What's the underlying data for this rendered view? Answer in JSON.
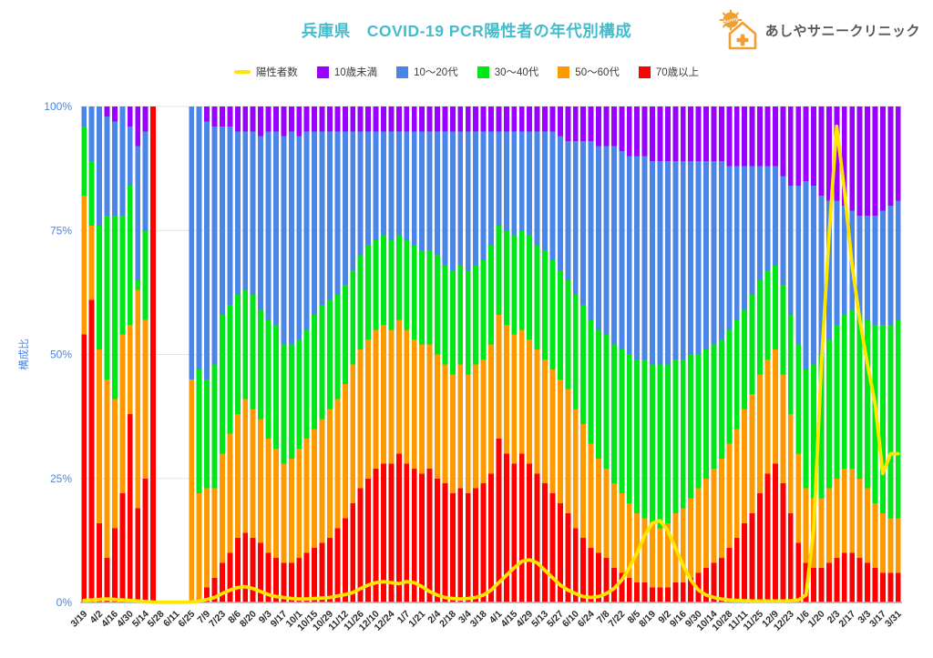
{
  "header": {
    "title": "兵庫県　COVID-19 PCR陽性者の年代別構成",
    "title_color": "#45BCCD",
    "logo": {
      "text": "あしやサニークリニック",
      "sun_label": "Sunny",
      "color": "#F0A030",
      "text_color": "#595959"
    }
  },
  "legend": {
    "items": [
      {
        "label": "陽性者数",
        "color": "#FFE600",
        "type": "line"
      },
      {
        "label": "10歳未満",
        "color": "#9900FF",
        "type": "box"
      },
      {
        "label": "10〜20代",
        "color": "#4A86E8",
        "type": "box"
      },
      {
        "label": "30〜40代",
        "color": "#00E619",
        "type": "box"
      },
      {
        "label": "50〜60代",
        "color": "#FF9900",
        "type": "box"
      },
      {
        "label": "70歳以上",
        "color": "#FF0000",
        "type": "box"
      }
    ]
  },
  "chart_data": {
    "type": "bar",
    "subtype": "100%-stacked-weekly-bars-with-overlay-line",
    "title": "兵庫県　COVID-19 PCR陽性者の年代別構成",
    "xlabel": "",
    "ylabel": "構成比",
    "ylim": [
      0,
      100
    ],
    "y_ticks": [
      "0%",
      "25%",
      "50%",
      "75%",
      "100%"
    ],
    "grid": true,
    "legend_position": "top",
    "axis_label_color": "#4A86E8",
    "x_label_color": "#2b2b2b",
    "gridline_color": "#e6e6e6",
    "axisline_color": "#b0b0b0",
    "x_tick_every": 2,
    "stack_from": "bottom",
    "categories": [
      "3/19",
      "3/26",
      "4/2",
      "4/9",
      "4/16",
      "4/23",
      "4/30",
      "5/7",
      "5/14",
      "5/21",
      "5/28",
      "6/4",
      "6/11",
      "6/18",
      "6/25",
      "7/2",
      "7/9",
      "7/16",
      "7/23",
      "7/30",
      "8/6",
      "8/13",
      "8/20",
      "8/27",
      "9/3",
      "9/10",
      "9/17",
      "9/24",
      "10/1",
      "10/8",
      "10/15",
      "10/22",
      "10/29",
      "11/5",
      "11/12",
      "11/19",
      "11/26",
      "12/3",
      "12/10",
      "12/17",
      "12/24",
      "12/31",
      "1/7",
      "1/14",
      "1/21",
      "1/28",
      "2/4",
      "2/11",
      "2/18",
      "2/25",
      "3/4",
      "3/11",
      "3/18",
      "3/25",
      "4/1",
      "4/8",
      "4/15",
      "4/22",
      "4/29",
      "5/6",
      "5/13",
      "5/20",
      "5/27",
      "6/3",
      "6/10",
      "6/17",
      "6/24",
      "7/1",
      "7/8",
      "7/15",
      "7/22",
      "7/29",
      "8/5",
      "8/12",
      "8/19",
      "8/26",
      "9/2",
      "9/9",
      "9/16",
      "9/23",
      "9/30",
      "10/7",
      "10/14",
      "10/21",
      "10/28",
      "11/4",
      "11/11",
      "11/18",
      "11/25",
      "12/2",
      "12/9",
      "12/16",
      "12/23",
      "12/30",
      "1/6",
      "1/13",
      "1/20",
      "1/27",
      "2/3",
      "2/10",
      "2/17",
      "2/24",
      "3/3",
      "3/10",
      "3/17",
      "3/24",
      "3/31"
    ],
    "series": [
      {
        "name": "70歳以上",
        "color": "#FF0000",
        "values": [
          54,
          61,
          16,
          9,
          15,
          22,
          38,
          19,
          25,
          100,
          0,
          0,
          0,
          0,
          0,
          0,
          3,
          5,
          8,
          10,
          13,
          14,
          13,
          12,
          10,
          9,
          8,
          8,
          9,
          10,
          11,
          12,
          13,
          15,
          17,
          20,
          23,
          25,
          27,
          28,
          28,
          30,
          28,
          27,
          26,
          27,
          25,
          24,
          22,
          23,
          22,
          23,
          24,
          26,
          33,
          30,
          28,
          30,
          28,
          26,
          24,
          22,
          20,
          18,
          15,
          13,
          11,
          10,
          9,
          7,
          6,
          5,
          4,
          4,
          3,
          3,
          3,
          4,
          4,
          5,
          6,
          7,
          8,
          9,
          11,
          13,
          16,
          18,
          22,
          26,
          28,
          24,
          18,
          12,
          8,
          7,
          7,
          8,
          9,
          10,
          10,
          9,
          8,
          7,
          6,
          6,
          6
        ]
      },
      {
        "name": "50〜60代",
        "color": "#FF9900",
        "values": [
          28,
          15,
          35,
          36,
          26,
          32,
          18,
          44,
          32,
          0,
          0,
          0,
          0,
          0,
          45,
          22,
          20,
          18,
          22,
          24,
          25,
          27,
          26,
          25,
          23,
          22,
          20,
          21,
          22,
          23,
          24,
          25,
          26,
          26,
          27,
          28,
          28,
          28,
          28,
          28,
          27,
          27,
          27,
          26,
          26,
          25,
          25,
          24,
          24,
          25,
          24,
          25,
          25,
          26,
          25,
          26,
          26,
          25,
          25,
          25,
          25,
          25,
          25,
          25,
          24,
          23,
          21,
          19,
          18,
          17,
          16,
          15,
          14,
          13,
          13,
          12,
          13,
          14,
          15,
          16,
          17,
          18,
          19,
          20,
          21,
          22,
          23,
          24,
          24,
          23,
          23,
          22,
          20,
          18,
          15,
          14,
          14,
          15,
          16,
          17,
          17,
          16,
          15,
          13,
          12,
          11,
          11
        ]
      },
      {
        "name": "30〜40代",
        "color": "#00E619",
        "values": [
          14,
          13,
          25,
          33,
          37,
          24,
          28,
          2,
          18,
          0,
          0,
          0,
          0,
          0,
          0,
          25,
          22,
          25,
          28,
          26,
          24,
          22,
          23,
          22,
          24,
          25,
          24,
          23,
          22,
          22,
          23,
          23,
          22,
          21,
          20,
          19,
          19,
          19,
          18,
          18,
          18,
          17,
          18,
          19,
          19,
          19,
          20,
          20,
          21,
          20,
          21,
          20,
          20,
          20,
          18,
          19,
          20,
          20,
          21,
          21,
          22,
          22,
          22,
          22,
          23,
          24,
          25,
          26,
          27,
          28,
          29,
          30,
          31,
          32,
          32,
          33,
          32,
          31,
          30,
          29,
          27,
          26,
          25,
          24,
          23,
          22,
          20,
          20,
          19,
          18,
          17,
          18,
          20,
          22,
          24,
          27,
          29,
          30,
          31,
          31,
          32,
          33,
          34,
          36,
          38,
          39,
          40
        ]
      },
      {
        "name": "10〜20代",
        "color": "#4A86E8",
        "values": [
          4,
          11,
          24,
          20,
          19,
          22,
          12,
          27,
          20,
          0,
          0,
          0,
          0,
          0,
          55,
          53,
          52,
          48,
          38,
          36,
          33,
          32,
          33,
          35,
          38,
          39,
          42,
          43,
          41,
          40,
          37,
          35,
          34,
          33,
          31,
          28,
          25,
          23,
          22,
          21,
          22,
          21,
          22,
          23,
          24,
          24,
          25,
          27,
          28,
          27,
          28,
          27,
          26,
          23,
          19,
          20,
          21,
          20,
          21,
          23,
          24,
          26,
          27,
          28,
          31,
          33,
          36,
          37,
          38,
          40,
          40,
          40,
          41,
          41,
          41,
          41,
          41,
          40,
          40,
          39,
          39,
          38,
          37,
          36,
          33,
          31,
          29,
          26,
          23,
          21,
          20,
          22,
          26,
          32,
          38,
          36,
          32,
          28,
          25,
          22,
          20,
          20,
          21,
          22,
          23,
          24,
          24
        ]
      },
      {
        "name": "10歳未満",
        "color": "#9900FF",
        "values": [
          0,
          0,
          0,
          2,
          3,
          0,
          4,
          8,
          5,
          0,
          0,
          0,
          0,
          0,
          0,
          0,
          3,
          4,
          4,
          4,
          5,
          5,
          5,
          6,
          5,
          5,
          6,
          5,
          6,
          5,
          5,
          5,
          5,
          5,
          5,
          5,
          5,
          5,
          5,
          5,
          5,
          5,
          5,
          5,
          5,
          5,
          5,
          5,
          5,
          5,
          5,
          5,
          5,
          5,
          5,
          5,
          5,
          5,
          5,
          5,
          5,
          5,
          6,
          7,
          7,
          7,
          7,
          8,
          8,
          8,
          9,
          10,
          10,
          10,
          11,
          11,
          11,
          11,
          11,
          11,
          11,
          11,
          11,
          11,
          12,
          12,
          12,
          12,
          12,
          12,
          12,
          14,
          16,
          16,
          15,
          16,
          18,
          19,
          19,
          20,
          21,
          22,
          22,
          22,
          21,
          20,
          19
        ]
      }
    ],
    "line_series": {
      "name": "陽性者数",
      "color": "#FFE600",
      "axis": "hidden (scaled to plot height, % of axis)",
      "values": [
        0.4,
        0.5,
        0.6,
        0.7,
        0.6,
        0.5,
        0.4,
        0.3,
        0.2,
        0.1,
        0.05,
        0.05,
        0.05,
        0.05,
        0.1,
        0.3,
        0.6,
        1,
        1.8,
        2.5,
        3,
        3.2,
        2.8,
        2.2,
        1.6,
        1.2,
        1,
        0.8,
        0.7,
        0.7,
        0.8,
        0.9,
        1,
        1.3,
        1.6,
        2,
        2.8,
        3.5,
        4,
        4.2,
        4,
        3.8,
        4.2,
        4,
        3.2,
        2.2,
        1.5,
        1,
        0.8,
        0.7,
        0.8,
        1,
        1.5,
        2.5,
        4,
        5.5,
        7,
        8.3,
        8.6,
        8,
        6.5,
        5,
        3.5,
        2.5,
        1.8,
        1.2,
        1,
        1.2,
        1.8,
        2.8,
        4.5,
        7,
        10,
        13.5,
        16,
        16.5,
        14.5,
        11,
        7.5,
        4.5,
        2.5,
        1.5,
        1,
        0.7,
        0.5,
        0.4,
        0.35,
        0.3,
        0.3,
        0.3,
        0.3,
        0.3,
        0.35,
        0.5,
        1.5,
        15,
        48,
        74,
        96,
        83,
        68,
        57,
        48,
        40,
        26,
        30,
        30
      ]
    }
  }
}
